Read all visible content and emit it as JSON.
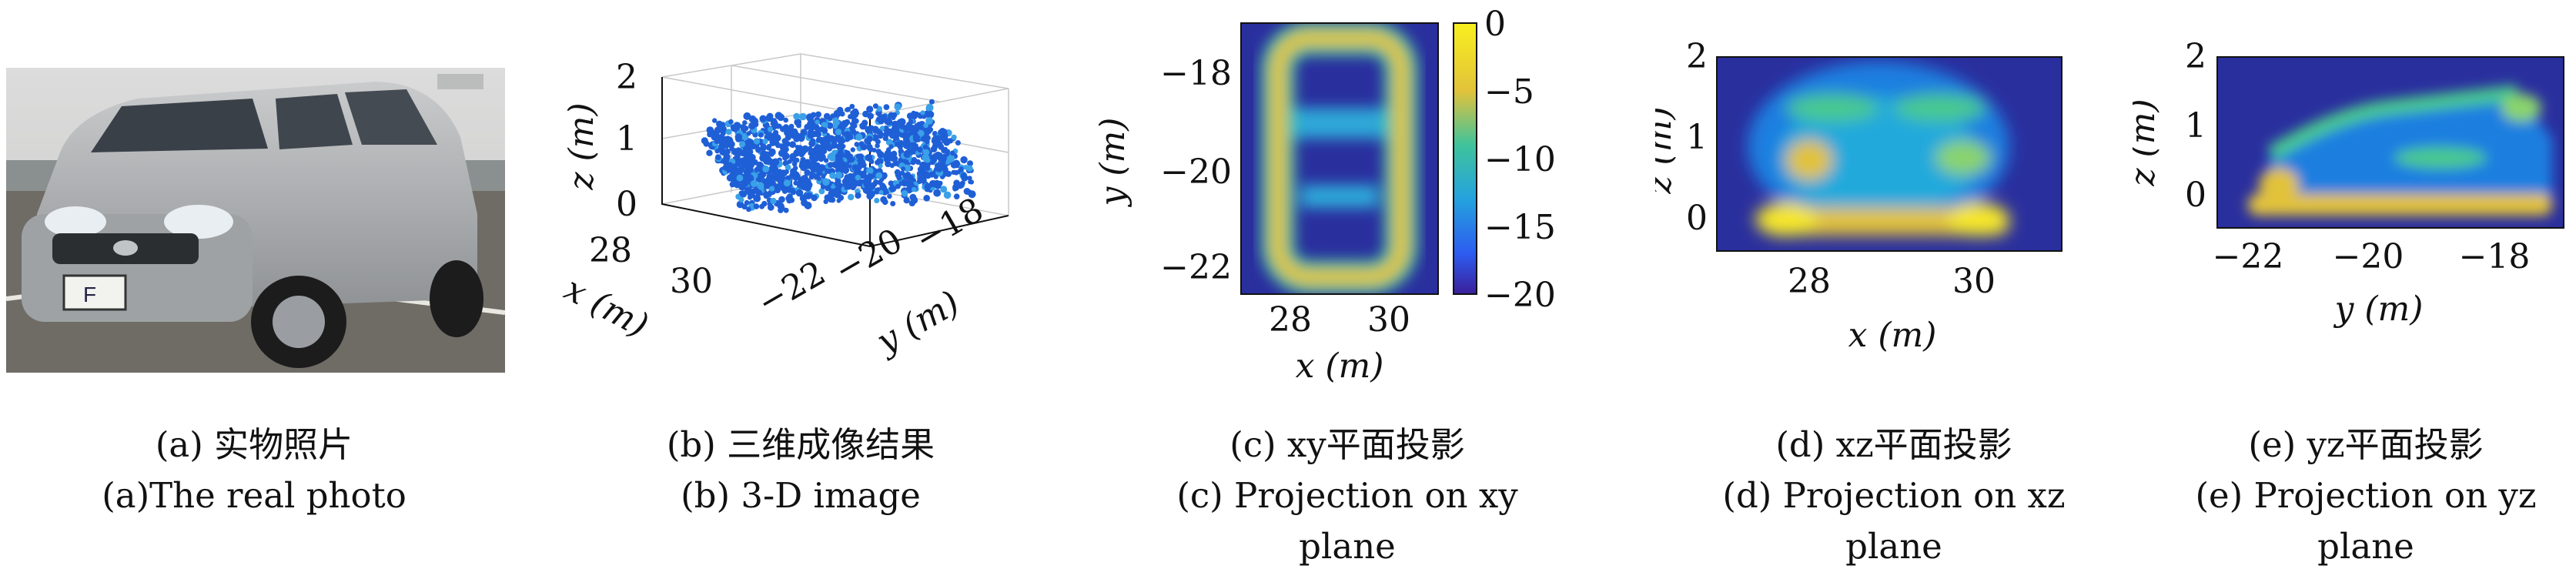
{
  "panels": [
    {
      "id": "a",
      "caption_zh": "(a) 实物照片",
      "caption_en": "(a)The real photo",
      "caption_en2": ""
    },
    {
      "id": "b",
      "caption_zh": "(b) 三维成像结果",
      "caption_en": "(b) 3-D image",
      "caption_en2": "",
      "axes": {
        "z_label": "z (m)",
        "z_ticks": [
          "2",
          "1",
          "0"
        ],
        "x_label": "x (m)",
        "x_ticks": [
          "28",
          "30"
        ],
        "y_label": "y (m)",
        "y_ticks": [
          "−22",
          "−20",
          "−18"
        ]
      }
    },
    {
      "id": "c",
      "caption_zh": "(c) xy平面投影",
      "caption_en": "(c) Projection on xy",
      "caption_en2": "plane",
      "axes": {
        "x_label": "x (m)",
        "x_ticks": [
          "28",
          "30"
        ],
        "y_label": "y (m)",
        "y_ticks": [
          "−18",
          "−20",
          "−22"
        ]
      },
      "colorbar": {
        "ticks": [
          "0",
          "−5",
          "−10",
          "−15",
          "−20"
        ]
      }
    },
    {
      "id": "d",
      "caption_zh": "(d) xz平面投影",
      "caption_en": "(d) Projection on xz",
      "caption_en2": "plane",
      "axes": {
        "x_label": "x (m)",
        "x_ticks": [
          "28",
          "30"
        ],
        "y_label": "z (m)",
        "y_ticks": [
          "2",
          "1",
          "0"
        ]
      }
    },
    {
      "id": "e",
      "caption_zh": "(e) yz平面投影",
      "caption_en": "(e) Projection on yz",
      "caption_en2": "plane",
      "axes": {
        "x_label": "y (m)",
        "x_ticks": [
          "−22",
          "−20",
          "−18"
        ],
        "y_label": "z (m)",
        "y_ticks": [
          "2",
          "1",
          "0"
        ]
      }
    }
  ],
  "colors": {
    "image_background": "#2a2f9e",
    "colorbar_top": "#f8f01e",
    "colorbar_bottom": "#3a1f9a",
    "scatter_points": "#1f5fd6"
  }
}
